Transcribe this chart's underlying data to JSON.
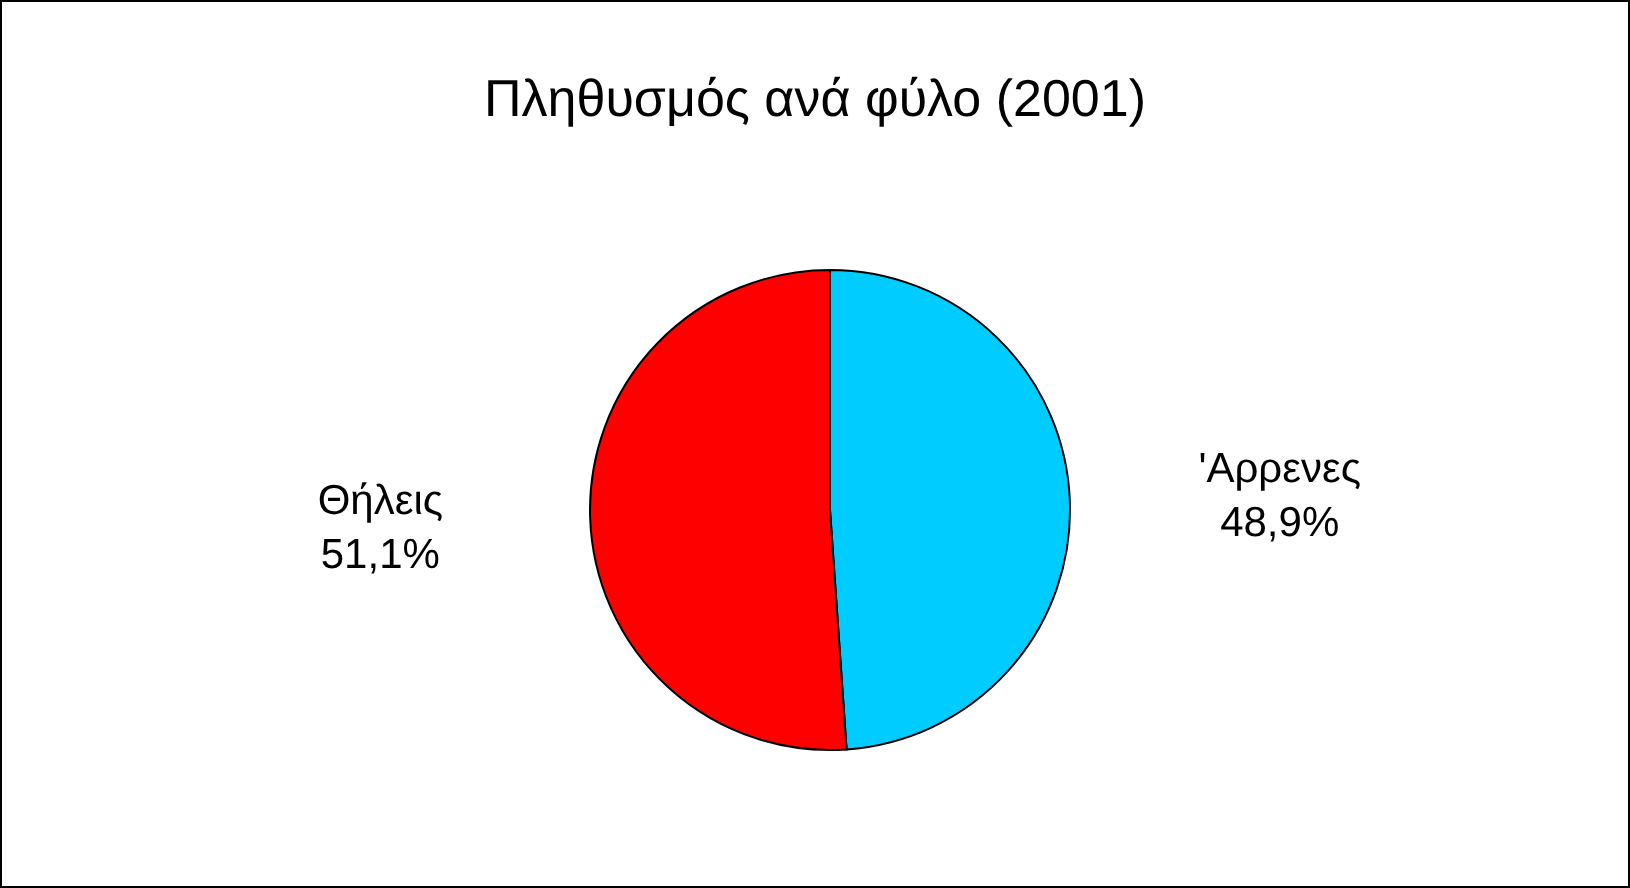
{
  "chart_data": {
    "type": "pie",
    "title": "Πληθυσμός ανά φύλο (2001)",
    "categories": [
      "'Αρρενες",
      "Θήλεις"
    ],
    "values": [
      48.9,
      51.1
    ],
    "colors": [
      "#00ccff",
      "#ff0000"
    ],
    "value_labels": [
      "48,9%",
      "51,1%"
    ]
  }
}
